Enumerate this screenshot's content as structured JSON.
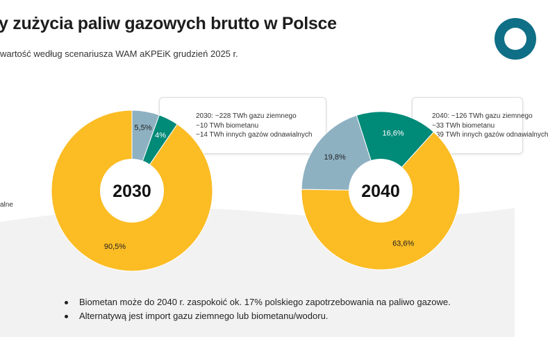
{
  "header": {
    "title": "y zużycia paliw gazowych brutto w Polsce",
    "subtitle": "wartość według scenariusza WAM aKPEiK grudzień 2025 r."
  },
  "left_legend_fragment": "alne",
  "colors": {
    "yellow": "#fbbc24",
    "blue": "#8eb1c2",
    "teal": "#008a78",
    "logo": "#0f6f86"
  },
  "chart_data": [
    {
      "type": "pie",
      "title": "2030",
      "slices": [
        {
          "label": "5,5%",
          "value": 5.5,
          "color": "#8eb1c2"
        },
        {
          "label": "4%",
          "value": 4,
          "color": "#008a78"
        },
        {
          "label": "90,5%",
          "value": 90.5,
          "color": "#fbbc24"
        }
      ],
      "note": [
        "2030: ~228 TWh gazu ziemnego",
        "~10 TWh biometanu",
        "~14 TWh innych gazów odnawialnych"
      ]
    },
    {
      "type": "pie",
      "title": "2040",
      "slices": [
        {
          "label": "16,6%",
          "value": 16.6,
          "color": "#008a78"
        },
        {
          "label": "63,6%",
          "value": 63.6,
          "color": "#fbbc24"
        },
        {
          "label": "19,8%",
          "value": 19.8,
          "color": "#8eb1c2"
        }
      ],
      "note": [
        "2040: ~126 TWh gazu ziemnego",
        "~33 TWh biometanu",
        "~39 TWh innych gazów odnawialnych"
      ]
    }
  ],
  "bullets": [
    "Biometan może do 2040 r. zaspokoić ok. 17% polskiego zapotrzebowania na paliwo gazowe.",
    "Alternatywą jest import gazu ziemnego lub biometanu/wodoru."
  ]
}
